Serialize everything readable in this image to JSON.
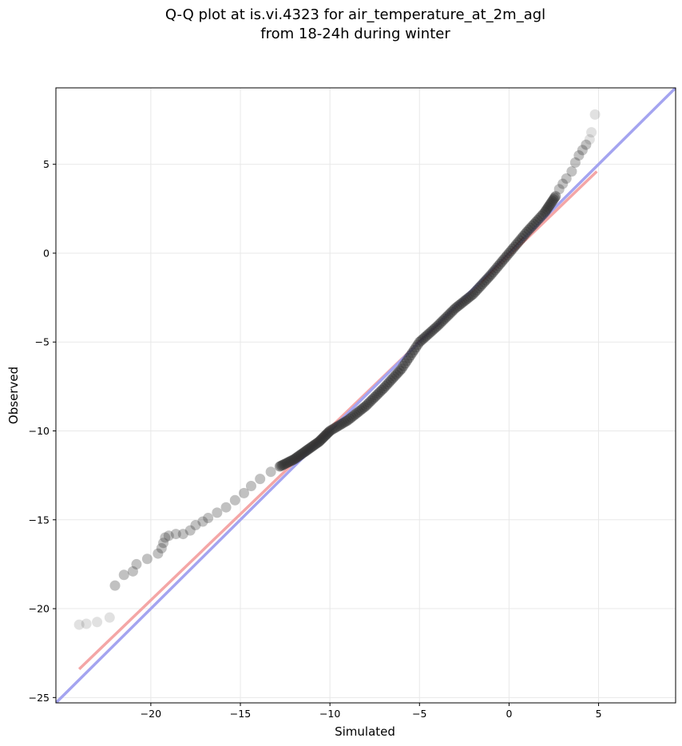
{
  "chart_data": {
    "type": "scatter",
    "title_line1": "Q-Q plot at is.vi.4323 for air_temperature_at_2m_agl",
    "title_line2": "from 18-24h during winter",
    "xlabel": "Simulated",
    "ylabel": "Observed",
    "xlim": [
      -25.3,
      9.3
    ],
    "ylim": [
      -25.3,
      9.3
    ],
    "xticks": [
      -20,
      -15,
      -10,
      -5,
      0,
      5
    ],
    "yticks": [
      -25,
      -20,
      -15,
      -10,
      -5,
      0,
      5
    ],
    "xtick_labels": [
      "−20",
      "−15",
      "−10",
      "−5",
      "0",
      "5"
    ],
    "ytick_labels": [
      "−25",
      "−20",
      "−15",
      "−10",
      "−5",
      "0",
      "5"
    ],
    "grid": true,
    "colors": {
      "points": "#333333",
      "identity_line": "#a4a4f0",
      "fit_line": "#f4a6a6"
    },
    "qq_points_sparse": [
      [
        -24.0,
        -20.9
      ],
      [
        -23.6,
        -20.85
      ],
      [
        -23.0,
        -20.75
      ],
      [
        -22.3,
        -20.5
      ],
      [
        -22.0,
        -18.7
      ],
      [
        -21.5,
        -18.1
      ],
      [
        -21.0,
        -17.9
      ],
      [
        -20.8,
        -17.5
      ],
      [
        -20.2,
        -17.2
      ],
      [
        -19.6,
        -16.9
      ],
      [
        -19.4,
        -16.6
      ],
      [
        -19.3,
        -16.3
      ],
      [
        -19.2,
        -16.0
      ],
      [
        -19.0,
        -15.9
      ],
      [
        -18.6,
        -15.8
      ],
      [
        -18.2,
        -15.8
      ],
      [
        -17.8,
        -15.6
      ],
      [
        -17.5,
        -15.3
      ],
      [
        -17.1,
        -15.1
      ],
      [
        -16.8,
        -14.9
      ],
      [
        -16.3,
        -14.6
      ],
      [
        -15.8,
        -14.3
      ],
      [
        -15.3,
        -13.9
      ],
      [
        -14.8,
        -13.5
      ],
      [
        -14.4,
        -13.1
      ],
      [
        -13.9,
        -12.7
      ],
      [
        -13.3,
        -12.3
      ],
      [
        2.8,
        3.6
      ],
      [
        3.0,
        3.9
      ],
      [
        3.2,
        4.2
      ],
      [
        3.5,
        4.6
      ],
      [
        3.7,
        5.1
      ],
      [
        3.9,
        5.5
      ],
      [
        4.1,
        5.8
      ],
      [
        4.3,
        6.1
      ],
      [
        4.5,
        6.4
      ],
      [
        4.6,
        6.8
      ],
      [
        4.8,
        7.8
      ]
    ],
    "qq_curve_dense": [
      [
        -12.8,
        -12.0
      ],
      [
        -12.0,
        -11.6
      ],
      [
        -11.3,
        -11.1
      ],
      [
        -10.6,
        -10.6
      ],
      [
        -10.0,
        -10.0
      ],
      [
        -9.0,
        -9.4
      ],
      [
        -8.0,
        -8.6
      ],
      [
        -7.0,
        -7.6
      ],
      [
        -6.0,
        -6.5
      ],
      [
        -5.0,
        -5.0
      ],
      [
        -4.0,
        -4.1
      ],
      [
        -3.0,
        -3.1
      ],
      [
        -2.0,
        -2.3
      ],
      [
        -1.0,
        -1.2
      ],
      [
        0.0,
        0.0
      ],
      [
        1.0,
        1.2
      ],
      [
        2.0,
        2.3
      ],
      [
        2.6,
        3.2
      ]
    ],
    "identity_line": {
      "x": [
        -25.3,
        9.3
      ],
      "y": [
        -25.3,
        9.3
      ]
    },
    "fit_line": {
      "x": [
        -24.0,
        4.9
      ],
      "y": [
        -23.4,
        4.6
      ]
    }
  }
}
